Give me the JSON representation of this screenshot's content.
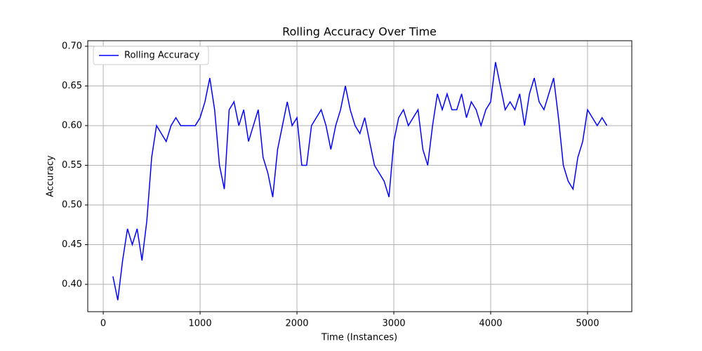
{
  "chart_data": {
    "type": "line",
    "title": "Rolling Accuracy Over Time",
    "x_label": "Time (Instances)",
    "y_label": "Accuracy",
    "x": [
      100,
      150,
      200,
      250,
      300,
      350,
      400,
      450,
      500,
      550,
      600,
      650,
      700,
      750,
      800,
      850,
      900,
      950,
      1000,
      1050,
      1100,
      1150,
      1200,
      1250,
      1300,
      1350,
      1400,
      1450,
      1500,
      1550,
      1600,
      1650,
      1700,
      1750,
      1800,
      1850,
      1900,
      1950,
      2000,
      2050,
      2100,
      2150,
      2200,
      2250,
      2300,
      2350,
      2400,
      2450,
      2500,
      2550,
      2600,
      2650,
      2700,
      2750,
      2800,
      2850,
      2900,
      2950,
      3000,
      3050,
      3100,
      3150,
      3200,
      3250,
      3300,
      3350,
      3400,
      3450,
      3500,
      3550,
      3600,
      3650,
      3700,
      3750,
      3800,
      3850,
      3900,
      3950,
      4000,
      4050,
      4100,
      4150,
      4200,
      4250,
      4300,
      4350,
      4400,
      4450,
      4500,
      4550,
      4600,
      4650,
      4700,
      4750,
      4800,
      4850,
      4900,
      4950,
      5000,
      5050,
      5100,
      5150,
      5200
    ],
    "series": [
      {
        "name": "Rolling Accuracy",
        "color": "#0000ff",
        "values": [
          0.41,
          0.38,
          0.43,
          0.47,
          0.45,
          0.47,
          0.43,
          0.48,
          0.56,
          0.6,
          0.59,
          0.58,
          0.6,
          0.61,
          0.6,
          0.6,
          0.6,
          0.6,
          0.61,
          0.63,
          0.66,
          0.62,
          0.55,
          0.52,
          0.62,
          0.63,
          0.6,
          0.62,
          0.58,
          0.6,
          0.62,
          0.56,
          0.54,
          0.51,
          0.57,
          0.6,
          0.63,
          0.6,
          0.61,
          0.55,
          0.55,
          0.6,
          0.61,
          0.62,
          0.6,
          0.57,
          0.6,
          0.62,
          0.65,
          0.62,
          0.6,
          0.59,
          0.61,
          0.58,
          0.55,
          0.54,
          0.53,
          0.51,
          0.58,
          0.61,
          0.62,
          0.6,
          0.61,
          0.62,
          0.57,
          0.55,
          0.6,
          0.64,
          0.62,
          0.64,
          0.62,
          0.62,
          0.64,
          0.61,
          0.63,
          0.62,
          0.6,
          0.62,
          0.63,
          0.68,
          0.65,
          0.62,
          0.63,
          0.62,
          0.64,
          0.6,
          0.64,
          0.66,
          0.63,
          0.62,
          0.64,
          0.66,
          0.61,
          0.55,
          0.53,
          0.52,
          0.56,
          0.58,
          0.62,
          0.61,
          0.6,
          0.61,
          0.6
        ]
      }
    ],
    "xlim": [
      -160,
      5457
    ],
    "xticks": [
      0,
      1000,
      2000,
      3000,
      4000,
      5000
    ],
    "ylim": [
      0.3655,
      0.707
    ],
    "yticks": [
      {
        "value": 0.4,
        "label": "0.40"
      },
      {
        "value": 0.45,
        "label": "0.45"
      },
      {
        "value": 0.5,
        "label": "0.50"
      },
      {
        "value": 0.55,
        "label": "0.55"
      },
      {
        "value": 0.6,
        "label": "0.60"
      },
      {
        "value": 0.65,
        "label": "0.65"
      },
      {
        "value": 0.7,
        "label": "0.70"
      }
    ],
    "grid": true,
    "legend": "upper left"
  }
}
